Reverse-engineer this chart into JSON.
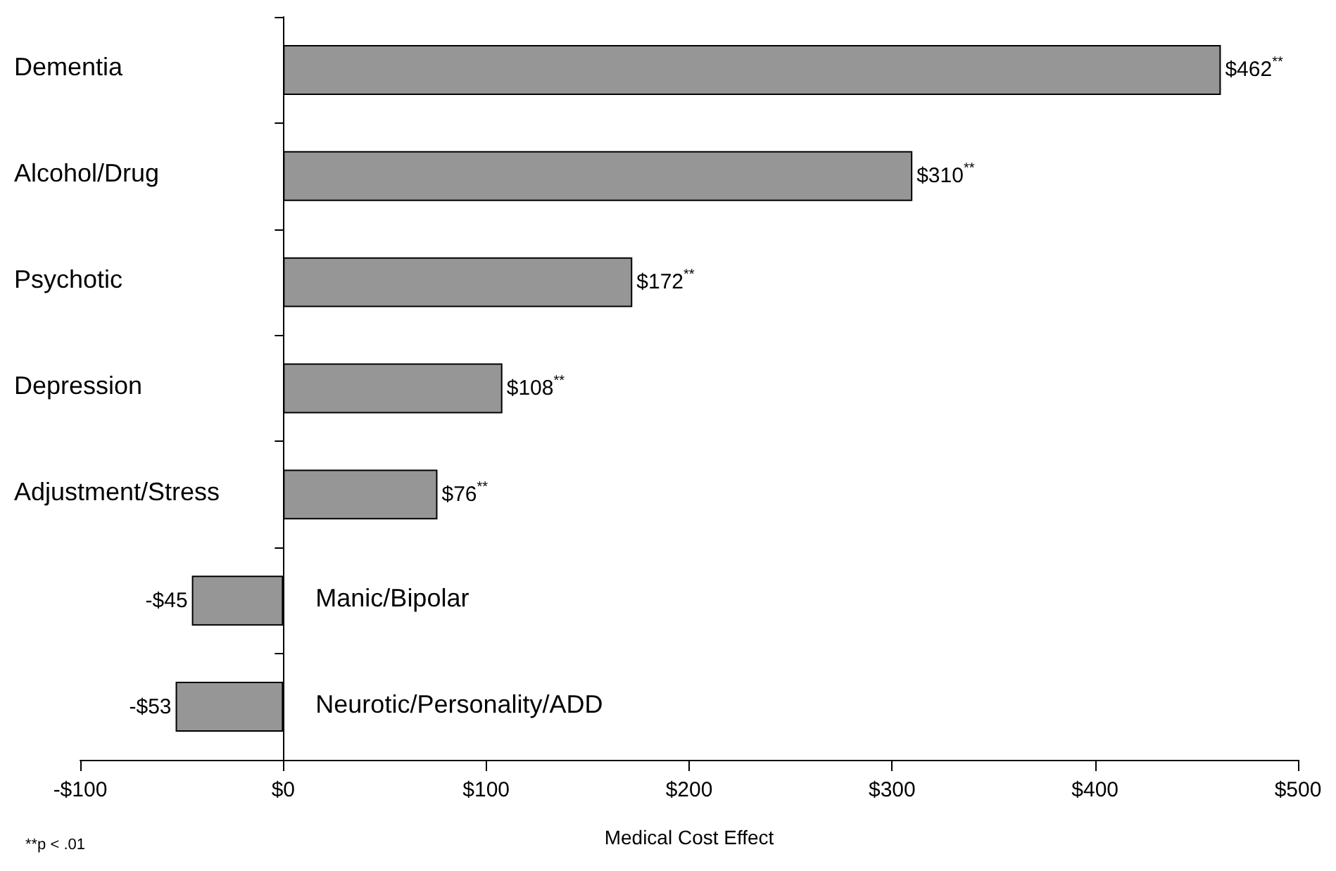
{
  "chart_data": {
    "type": "bar",
    "orientation": "horizontal",
    "categories": [
      "Dementia",
      "Alcohol/Drug",
      "Psychotic",
      "Depression",
      "Adjustment/Stress",
      "Manic/Bipolar",
      "Neurotic/Personality/ADD"
    ],
    "values": [
      462,
      310,
      172,
      108,
      76,
      -45,
      -53
    ],
    "value_labels": [
      "$462$^{**}$",
      "$310$^{**}$",
      "$172$^{**}$",
      "$108$^{**}$",
      "$76$^{**}$",
      "-$45",
      "-$53"
    ],
    "color": "#969696",
    "xlim": [
      -100,
      500
    ],
    "xticks": [
      {
        "value": -100,
        "label": "-$100"
      },
      {
        "value": 0,
        "label": "$0"
      },
      {
        "value": 100,
        "label": "$100"
      },
      {
        "value": 200,
        "label": "$200"
      },
      {
        "value": 300,
        "label": "$300"
      },
      {
        "value": 400,
        "label": "$400"
      },
      {
        "value": 500,
        "label": "$500"
      }
    ],
    "xlabel": "Medical Cost Effect",
    "annotations": [
      "**p < .01"
    ],
    "grid": false
  }
}
